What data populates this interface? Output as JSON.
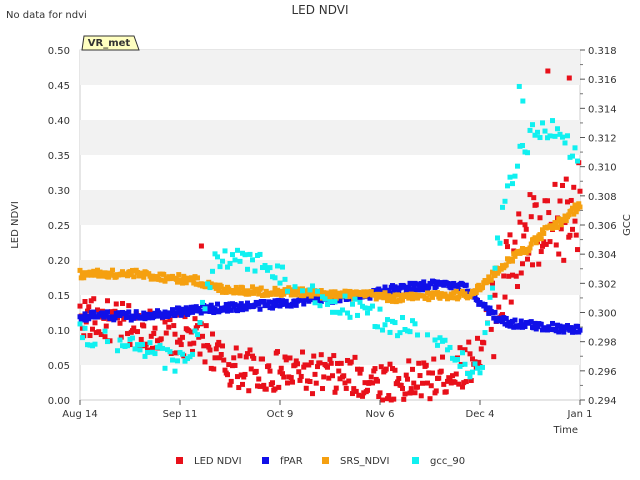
{
  "notice": "No data for ndvi",
  "site_badge": "VR_met",
  "chart_data": {
    "type": "scatter",
    "title": "LED NDVI",
    "xlabel": "Time",
    "ylabel_left": "LED NDVI",
    "ylabel_right": "GCC",
    "x_ticks": [
      "Aug 14",
      "Sep 11",
      "Oct 9",
      "Nov 6",
      "Dec 4",
      "Jan 1"
    ],
    "x_range_days": [
      0,
      140
    ],
    "y_left_range": [
      0.0,
      0.5
    ],
    "y_left_ticks": [
      "0.00",
      "0.05",
      "0.10",
      "0.15",
      "0.20",
      "0.25",
      "0.30",
      "0.35",
      "0.40",
      "0.45",
      "0.50"
    ],
    "y_right_range": [
      0.294,
      0.318
    ],
    "y_right_ticks": [
      "0.294",
      "0.296",
      "0.298",
      "0.300",
      "0.302",
      "0.304",
      "0.306",
      "0.308",
      "0.310",
      "0.312",
      "0.314",
      "0.316",
      "0.318"
    ],
    "series": [
      {
        "name": "LED NDVI",
        "color": "#e8101a",
        "axis": "left",
        "trend": [
          [
            0,
            0.12
          ],
          [
            10,
            0.11
          ],
          [
            20,
            0.1
          ],
          [
            30,
            0.09
          ],
          [
            36,
            0.08
          ],
          [
            40,
            0.05
          ],
          [
            50,
            0.04
          ],
          [
            60,
            0.04
          ],
          [
            70,
            0.035
          ],
          [
            80,
            0.03
          ],
          [
            90,
            0.025
          ],
          [
            100,
            0.03
          ],
          [
            108,
            0.05
          ],
          [
            112,
            0.07
          ],
          [
            116,
            0.13
          ],
          [
            120,
            0.18
          ],
          [
            126,
            0.24
          ],
          [
            130,
            0.22
          ],
          [
            134,
            0.25
          ],
          [
            140,
            0.28
          ]
        ],
        "spread": 0.03,
        "outliers": [
          [
            34,
            0.22
          ],
          [
            131,
            0.47
          ],
          [
            137,
            0.46
          ]
        ]
      },
      {
        "name": "fPAR",
        "color": "#1010e8",
        "axis": "left",
        "trend": [
          [
            0,
            0.12
          ],
          [
            15,
            0.12
          ],
          [
            25,
            0.125
          ],
          [
            35,
            0.13
          ],
          [
            50,
            0.135
          ],
          [
            60,
            0.14
          ],
          [
            70,
            0.145
          ],
          [
            80,
            0.15
          ],
          [
            90,
            0.16
          ],
          [
            100,
            0.165
          ],
          [
            108,
            0.16
          ],
          [
            112,
            0.14
          ],
          [
            116,
            0.12
          ],
          [
            120,
            0.11
          ],
          [
            130,
            0.105
          ],
          [
            140,
            0.1
          ]
        ],
        "spread": 0.006
      },
      {
        "name": "SRS_NDVI",
        "color": "#f5a010",
        "axis": "left",
        "trend": [
          [
            0,
            0.18
          ],
          [
            15,
            0.18
          ],
          [
            25,
            0.175
          ],
          [
            33,
            0.17
          ],
          [
            38,
            0.16
          ],
          [
            50,
            0.155
          ],
          [
            60,
            0.155
          ],
          [
            70,
            0.15
          ],
          [
            80,
            0.15
          ],
          [
            90,
            0.145
          ],
          [
            100,
            0.15
          ],
          [
            108,
            0.15
          ],
          [
            112,
            0.16
          ],
          [
            116,
            0.18
          ],
          [
            120,
            0.2
          ],
          [
            126,
            0.22
          ],
          [
            130,
            0.24
          ],
          [
            136,
            0.26
          ],
          [
            140,
            0.28
          ]
        ],
        "spread": 0.006
      },
      {
        "name": "gcc_90",
        "color": "#10f0f0",
        "axis": "right",
        "trend": [
          [
            0,
            0.2985
          ],
          [
            15,
            0.2975
          ],
          [
            30,
            0.2965
          ],
          [
            38,
            0.3035
          ],
          [
            50,
            0.3035
          ],
          [
            62,
            0.3015
          ],
          [
            72,
            0.3005
          ],
          [
            85,
            0.2995
          ],
          [
            95,
            0.2985
          ],
          [
            105,
            0.2975
          ],
          [
            112,
            0.2955
          ],
          [
            116,
            0.303
          ],
          [
            120,
            0.309
          ],
          [
            126,
            0.312
          ],
          [
            134,
            0.313
          ],
          [
            140,
            0.31
          ]
        ],
        "spread": 0.0008,
        "outliers": [
          [
            123,
            0.3155
          ],
          [
            124,
            0.3145
          ]
        ]
      }
    ]
  }
}
